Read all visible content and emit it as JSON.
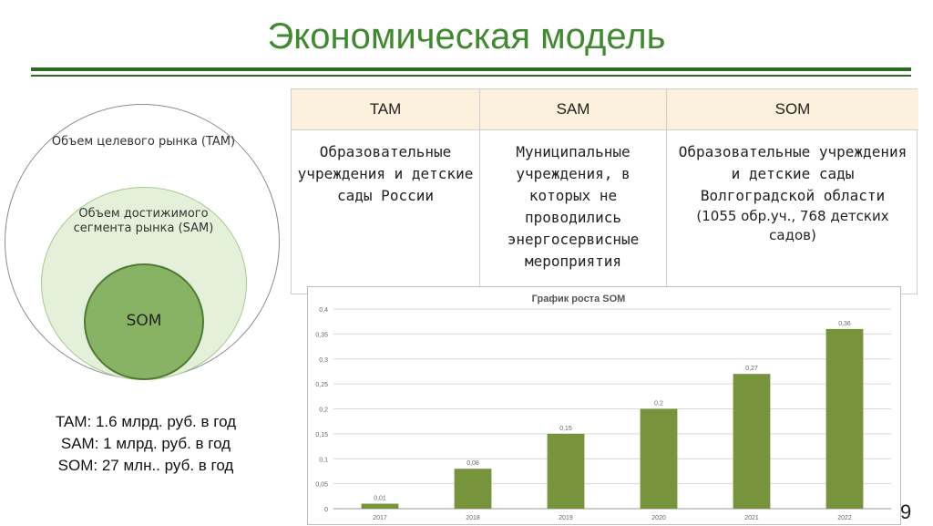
{
  "slide": {
    "title": "Экономическая модель",
    "page_number": "9"
  },
  "circles": {
    "tam_label": "Объем целевого рынка (TAM)",
    "sam_label": "Объем достижимого сегмента рынка (SAM)",
    "som_label": "SOM"
  },
  "summary": {
    "tam": "TAM: 1.6  млрд. руб. в год",
    "sam": "SAM: 1  млрд.  руб. в год",
    "som": "SOM: 27 млн.. руб. в год"
  },
  "table": {
    "headers": [
      "TAM",
      "SAM",
      "SOM"
    ],
    "cells": [
      {
        "main": "Образовательные учреждения и детские сады России",
        "sub": ""
      },
      {
        "main": "Муниципальные учреждения, в которых не проводились энергосервисные мероприятия",
        "sub": ""
      },
      {
        "main": "Образовательные учреждения и детские сады Волгоградской области",
        "sub": "(1055 обр.уч., 768 детских садов)"
      }
    ]
  },
  "colors": {
    "title": "#3f8a2e",
    "bar": "#77933c",
    "table_header_bg": "#fcf1dd",
    "sam_circle": "#e4f0d9",
    "som_circle": "#89b364"
  },
  "chart_data": {
    "type": "bar",
    "title": "График роста SOM",
    "categories": [
      "2017",
      "2018",
      "2019",
      "2020",
      "2021",
      "2022"
    ],
    "values": [
      0.01,
      0.08,
      0.15,
      0.2,
      0.27,
      0.36
    ],
    "data_labels": [
      "0,01",
      "0,08",
      "0,15",
      "0,2",
      "0,27",
      "0,36"
    ],
    "y_ticks": [
      "0",
      "0,05",
      "0,1",
      "0,15",
      "0,2",
      "0,25",
      "0,3",
      "0,35",
      "0,4"
    ],
    "ylim": [
      0,
      0.4
    ],
    "grid": true,
    "legend": "none"
  }
}
